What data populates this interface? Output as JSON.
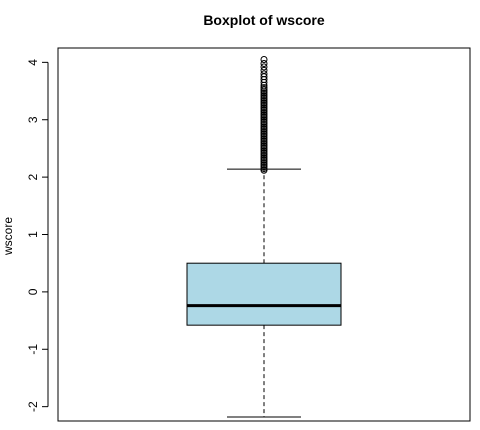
{
  "chart_data": {
    "type": "boxplot",
    "title": "Boxplot of wscore",
    "xlabel": "",
    "ylabel": "wscore",
    "ylim": [
      -2.25,
      4.25
    ],
    "yticks": [
      -2,
      -1,
      0,
      1,
      2,
      3,
      4
    ],
    "ytick_labels": [
      "-2",
      "-1",
      "0",
      "1",
      "2",
      "3",
      "4"
    ],
    "grid": false,
    "box_fill": "#add8e6",
    "series": [
      {
        "whisker_low": -2.18,
        "q1": -0.58,
        "median": -0.24,
        "q3": 0.5,
        "whisker_high": 2.14,
        "outliers": [
          2.12,
          2.15,
          2.18,
          2.21,
          2.24,
          2.27,
          2.3,
          2.33,
          2.36,
          2.39,
          2.42,
          2.45,
          2.48,
          2.51,
          2.54,
          2.57,
          2.6,
          2.63,
          2.66,
          2.69,
          2.72,
          2.75,
          2.78,
          2.81,
          2.84,
          2.87,
          2.9,
          2.93,
          2.96,
          2.99,
          3.02,
          3.05,
          3.08,
          3.11,
          3.14,
          3.17,
          3.2,
          3.23,
          3.26,
          3.29,
          3.32,
          3.35,
          3.38,
          3.41,
          3.44,
          3.47,
          3.5,
          3.53,
          3.56,
          3.6,
          3.65,
          3.7,
          3.75,
          3.8,
          3.86,
          3.92,
          3.98,
          4.05
        ]
      }
    ]
  }
}
